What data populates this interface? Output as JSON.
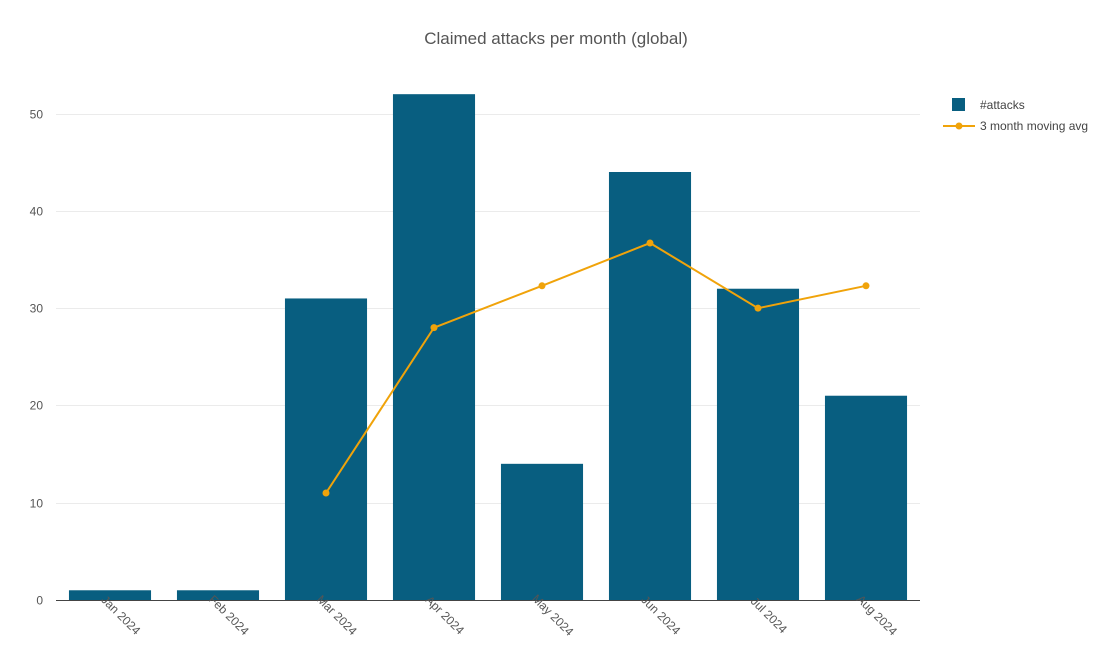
{
  "chart_data": {
    "type": "bar",
    "title": "Claimed attacks per month (global)",
    "xlabel": "",
    "ylabel": "",
    "categories": [
      "Jan 2024",
      "Feb 2024",
      "Mar 2024",
      "Apr 2024",
      "May 2024",
      "Jun 2024",
      "Jul 2024",
      "Aug 2024"
    ],
    "ylim": [
      0,
      55
    ],
    "yticks": [
      0,
      10,
      20,
      30,
      40,
      50
    ],
    "grid": true,
    "legend_position": "top-right",
    "series": [
      {
        "name": "#attacks",
        "type": "bar",
        "color": "#085e80",
        "values": [
          1,
          1,
          31,
          52,
          14,
          44,
          32,
          21
        ]
      },
      {
        "name": "3 month moving avg",
        "type": "line",
        "color": "#f0a30a",
        "values": [
          null,
          null,
          11,
          28,
          32.3,
          36.7,
          30,
          32.3
        ]
      }
    ]
  }
}
